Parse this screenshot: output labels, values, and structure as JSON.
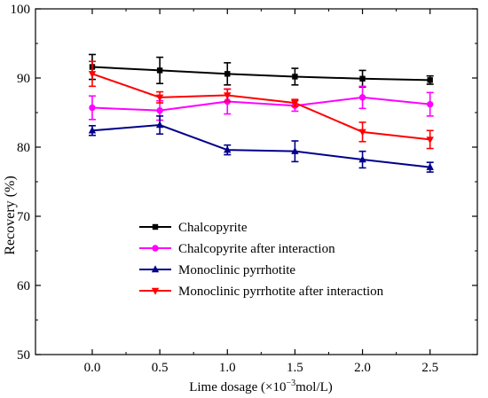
{
  "chart_data": {
    "type": "line",
    "title": "",
    "xlabel_prefix": "Lime dosage (×10",
    "xlabel_exp": "−3",
    "xlabel_suffix": "mol/L)",
    "ylabel": "Recovery (%)",
    "xlim": [
      -0.42,
      2.85
    ],
    "ylim": [
      50,
      100
    ],
    "x": [
      0.0,
      0.5,
      1.0,
      1.5,
      2.0,
      2.5
    ],
    "x_ticks": [
      "0.0",
      "0.5",
      "1.0",
      "1.5",
      "2.0",
      "2.5"
    ],
    "y_ticks": [
      "50",
      "60",
      "70",
      "80",
      "90",
      "100"
    ],
    "grid": false,
    "legend_position": "center-left",
    "series": [
      {
        "name": "Chalcopyrite",
        "color": "#000000",
        "marker": "square",
        "values": [
          91.6,
          91.1,
          90.6,
          90.2,
          89.9,
          89.7
        ],
        "errors": [
          1.8,
          1.9,
          1.6,
          1.2,
          1.2,
          0.6
        ]
      },
      {
        "name": "Chalcopyrite after interaction",
        "color": "#ff00ff",
        "marker": "circle",
        "values": [
          85.7,
          85.3,
          86.6,
          86.0,
          87.2,
          86.2
        ],
        "errors": [
          1.7,
          1.4,
          1.8,
          0.8,
          1.6,
          1.7
        ]
      },
      {
        "name": "Monoclinic pyrrhotite",
        "color": "#00008b",
        "marker": "triangle-up",
        "values": [
          82.4,
          83.2,
          79.6,
          79.4,
          78.2,
          77.1
        ],
        "errors": [
          0.7,
          1.3,
          0.7,
          1.5,
          1.2,
          0.7
        ]
      },
      {
        "name": "Monoclinic pyrrhotite after interaction",
        "color": "#ff0000",
        "marker": "triangle-down",
        "values": [
          90.6,
          87.2,
          87.5,
          86.4,
          82.2,
          81.1
        ],
        "errors": [
          1.8,
          0.8,
          0.9,
          0.5,
          1.4,
          1.3
        ]
      }
    ]
  }
}
